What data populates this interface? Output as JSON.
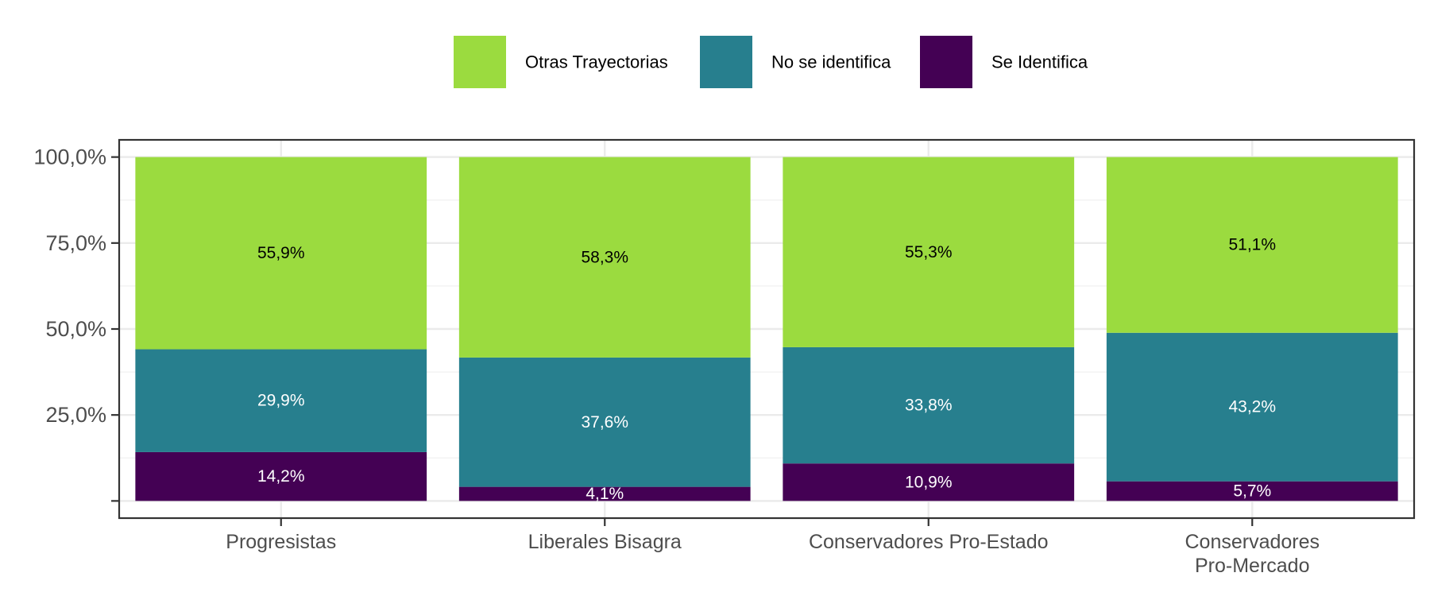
{
  "chart_data": {
    "type": "bar",
    "stacked": true,
    "categories": [
      "Progresistas",
      "Liberales Bisagra",
      "Conservadores Pro-Estado",
      "Conservadores\nPro-Mercado"
    ],
    "series": [
      {
        "name": "Se Identifica",
        "values": [
          14.2,
          4.1,
          10.9,
          5.7
        ],
        "labels": [
          "14,2%",
          "4,1%",
          "10,9%",
          "5,7%"
        ],
        "color": "#440154",
        "label_color": "#ffffff"
      },
      {
        "name": "No se identifica",
        "values": [
          29.9,
          37.6,
          33.8,
          43.2
        ],
        "labels": [
          "29,9%",
          "37,6%",
          "33,8%",
          "43,2%"
        ],
        "color": "#277f8e",
        "label_color": "#ffffff"
      },
      {
        "name": "Otras Trayectorias",
        "values": [
          55.9,
          58.3,
          55.3,
          51.1
        ],
        "labels": [
          "55,9%",
          "58,3%",
          "55,3%",
          "51,1%"
        ],
        "color": "#9bdb3f",
        "label_color": "#000000"
      }
    ],
    "legend": {
      "position": "top",
      "order": [
        "Otras Trayectorias",
        "No se identifica",
        "Se Identifica"
      ]
    },
    "y_ticks": [
      {
        "value": 0,
        "label": ""
      },
      {
        "value": 25,
        "label": "25,0%"
      },
      {
        "value": 50,
        "label": "50,0%"
      },
      {
        "value": 75,
        "label": "75,0%"
      },
      {
        "value": 100,
        "label": "100,0%"
      }
    ],
    "ylim": [
      -5,
      105
    ],
    "grid": true,
    "title": "",
    "xlabel": "",
    "ylabel": ""
  }
}
